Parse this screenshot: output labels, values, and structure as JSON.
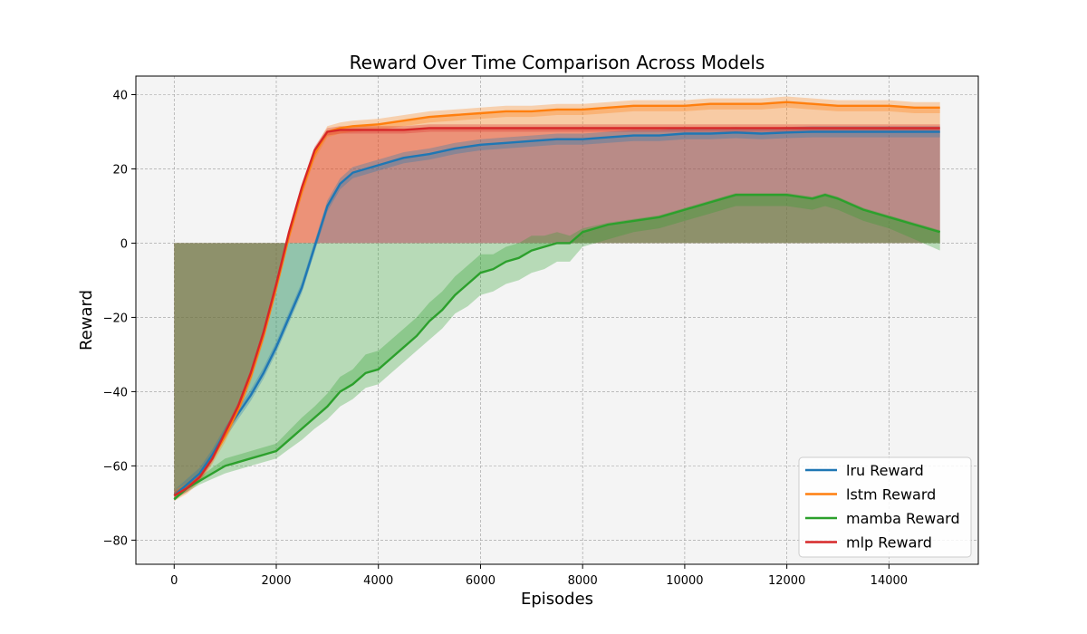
{
  "chart_data": {
    "type": "line",
    "title": "Reward Over Time Comparison Across Models",
    "xlabel": "Episodes",
    "ylabel": "Reward",
    "xlim": [
      -750,
      15750
    ],
    "ylim": [
      -86.5,
      45
    ],
    "xticks": [
      0,
      2000,
      4000,
      6000,
      8000,
      10000,
      12000,
      14000
    ],
    "yticks": [
      -80,
      -60,
      -40,
      -20,
      0,
      20,
      40
    ],
    "grid": true,
    "legend_position": "lower-right",
    "series": [
      {
        "name": "lru Reward",
        "color": "#1f77b4",
        "x": [
          0,
          250,
          500,
          750,
          1000,
          1250,
          1500,
          1750,
          2000,
          2250,
          2500,
          2750,
          3000,
          3250,
          3500,
          4000,
          4500,
          5000,
          5500,
          6000,
          6500,
          7000,
          7500,
          8000,
          8500,
          9000,
          9500,
          10000,
          10500,
          11000,
          11500,
          12000,
          12500,
          13000,
          13500,
          14000,
          14500,
          15000
        ],
        "y": [
          -68,
          -65,
          -62,
          -57,
          -51,
          -46,
          -41,
          -35,
          -28,
          -20,
          -12,
          -1,
          10,
          16,
          19,
          21,
          23,
          24,
          25.5,
          26.5,
          27,
          27.5,
          28,
          28,
          28.5,
          29,
          29,
          29.5,
          29.5,
          29.8,
          29.5,
          29.8,
          30,
          30,
          30,
          30,
          30,
          30
        ],
        "band": 1.5
      },
      {
        "name": "lstm Reward",
        "color": "#ff7f0e",
        "x": [
          0,
          250,
          500,
          750,
          1000,
          1250,
          1500,
          1750,
          2000,
          2250,
          2500,
          2750,
          3000,
          3250,
          3500,
          4000,
          4500,
          5000,
          5500,
          6000,
          6500,
          7000,
          7500,
          8000,
          8500,
          9000,
          9500,
          10000,
          10500,
          11000,
          11500,
          12000,
          12500,
          13000,
          13500,
          14000,
          14500,
          15000
        ],
        "y": [
          -68,
          -66,
          -63,
          -58,
          -52,
          -45,
          -36,
          -25,
          -12,
          2,
          14,
          24,
          30,
          31,
          31.5,
          32,
          33,
          34,
          34.5,
          35,
          35.5,
          35.5,
          36,
          36,
          36.5,
          37,
          37,
          37,
          37.5,
          37.5,
          37.5,
          38,
          37.5,
          37,
          37,
          37,
          36.5,
          36.5
        ],
        "band": 1.5
      },
      {
        "name": "mamba Reward",
        "color": "#2ca02c",
        "x": [
          0,
          250,
          500,
          750,
          1000,
          1250,
          1500,
          1750,
          2000,
          2250,
          2500,
          2750,
          3000,
          3250,
          3500,
          3750,
          4000,
          4250,
          4500,
          4750,
          5000,
          5250,
          5500,
          5750,
          6000,
          6250,
          6500,
          6750,
          7000,
          7250,
          7500,
          7750,
          8000,
          8500,
          9000,
          9500,
          10000,
          10500,
          11000,
          11500,
          12000,
          12500,
          12750,
          13000,
          13500,
          14000,
          14500,
          15000
        ],
        "y": [
          -69,
          -66,
          -64,
          -62,
          -60,
          -59,
          -58,
          -57,
          -56,
          -53,
          -50,
          -47,
          -44,
          -40,
          -38,
          -35,
          -34,
          -31,
          -28,
          -25,
          -21,
          -18,
          -14,
          -11,
          -8,
          -7,
          -5,
          -4,
          -2,
          -1,
          0,
          0,
          3,
          5,
          6,
          7,
          9,
          11,
          13,
          13,
          13,
          12,
          13,
          12,
          9,
          7,
          5,
          3
        ],
        "band_above": [
          0,
          1,
          1,
          1.5,
          2,
          2,
          2,
          2,
          2,
          2.5,
          3,
          3,
          3.5,
          4,
          4,
          5,
          5,
          5,
          5,
          5,
          5,
          5,
          5,
          5,
          5,
          4,
          4,
          4,
          4,
          3,
          3,
          2,
          1,
          0.5,
          0.5,
          0.5,
          0.5,
          0.5,
          0.5,
          0.5,
          0.5,
          0.5,
          0.5,
          0.5,
          0.5,
          0.5,
          0.5,
          0.5
        ],
        "band_below": [
          0,
          1,
          1,
          1.5,
          2,
          2,
          2,
          2,
          2,
          2.5,
          3,
          3,
          3.5,
          4,
          4,
          4,
          4,
          4,
          4,
          4,
          5,
          5,
          5,
          6,
          6,
          6,
          6,
          6,
          6,
          6,
          5,
          5,
          4,
          4,
          3,
          3,
          3,
          3,
          3,
          3,
          3,
          3,
          3,
          3,
          3,
          3,
          4,
          5
        ]
      },
      {
        "name": "mlp Reward",
        "color": "#d62728",
        "x": [
          0,
          250,
          500,
          750,
          1000,
          1250,
          1500,
          1750,
          2000,
          2250,
          2500,
          2750,
          3000,
          3250,
          3500,
          4000,
          4500,
          5000,
          5500,
          6000,
          6500,
          7000,
          7500,
          8000,
          8500,
          9000,
          9500,
          10000,
          10500,
          11000,
          11500,
          12000,
          12500,
          13000,
          13500,
          14000,
          14500,
          15000
        ],
        "y": [
          -68,
          -66,
          -63,
          -58,
          -51,
          -44,
          -35,
          -24,
          -11,
          3,
          15,
          25,
          30,
          30.5,
          30.5,
          30.5,
          30.5,
          31,
          31,
          31,
          31,
          31,
          31,
          31,
          31,
          31,
          31,
          31,
          31,
          31,
          31,
          31,
          31,
          31,
          31,
          31,
          31,
          31
        ],
        "band": 1.0
      }
    ],
    "fill_to_zero": [
      {
        "series": "lstm Reward",
        "color": "#ff7f0e",
        "opacity": 0.35
      },
      {
        "series": "mlp Reward",
        "color": "#d62728",
        "opacity": 0.35
      },
      {
        "series": "lru Reward",
        "color": "#1f77b4",
        "opacity": 0.25
      },
      {
        "series": "mamba Reward",
        "color": "#2ca02c",
        "opacity": 0.3
      }
    ],
    "legend": [
      "lru Reward",
      "lstm Reward",
      "mamba Reward",
      "mlp Reward"
    ]
  }
}
